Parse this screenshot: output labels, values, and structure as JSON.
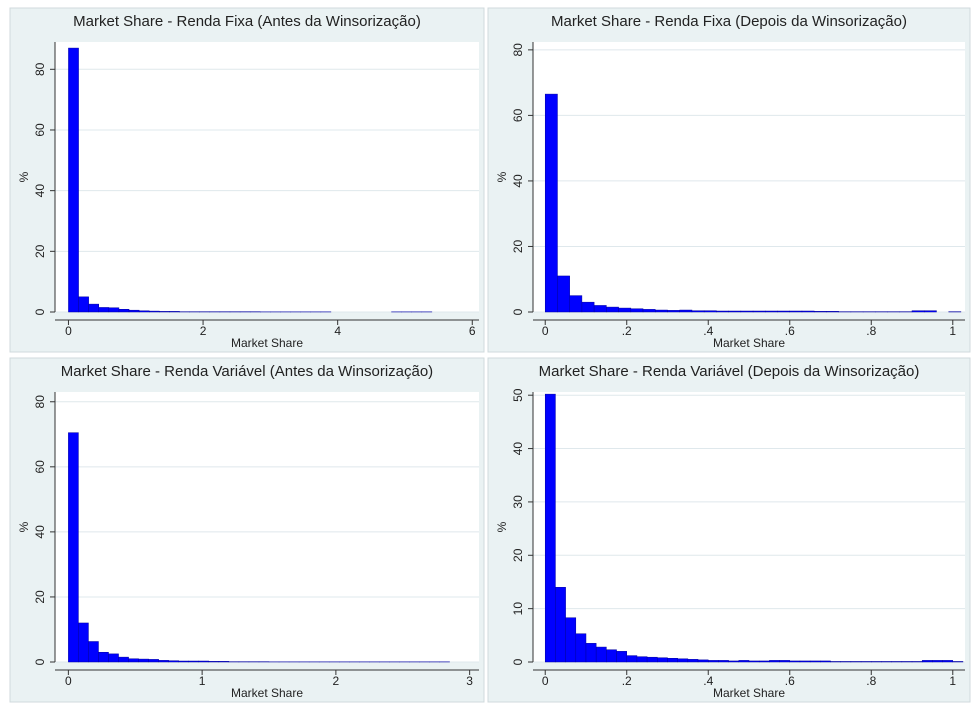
{
  "chart_data": [
    {
      "type": "histogram",
      "title": "Market Share - Renda Fixa (Antes da Winsorização)",
      "x_label": "Market Share",
      "y_label": "%",
      "color": "#0000ff",
      "grid": true,
      "bins": [
        0,
        0.15,
        0.3,
        0.45,
        0.6,
        0.75,
        0.9,
        1.05,
        1.2,
        1.35,
        1.5,
        1.65,
        1.8,
        1.95,
        2.1,
        2.25,
        2.4,
        2.55,
        2.7,
        2.85,
        3,
        3.15,
        3.3,
        3.45,
        3.6,
        3.75,
        3.9,
        4.05,
        4.2,
        4.35,
        4.5,
        4.65,
        4.8,
        4.95,
        5.1,
        5.25,
        5.4,
        5.55
      ],
      "values": [
        87,
        5,
        2.6,
        1.5,
        1.4,
        0.9,
        0.6,
        0.4,
        0.3,
        0.2,
        0.2,
        0.1,
        0.1,
        0.1,
        0.1,
        0.1,
        0.1,
        0.1,
        0.1,
        0.05,
        0.05,
        0.05,
        0.05,
        0.05,
        0.05,
        0.05,
        0,
        0,
        0,
        0,
        0,
        0,
        0.05,
        0.05,
        0.05,
        0.05,
        0
      ],
      "xlim": [
        -0.2,
        6.1
      ],
      "xticks": [
        0,
        2,
        4,
        6
      ],
      "ylim": [
        0,
        89
      ],
      "yticks": [
        0,
        20,
        40,
        60,
        80
      ]
    },
    {
      "type": "histogram",
      "title": "Market Share - Renda Fixa (Depois da Winsorização)",
      "x_label": "Market Share",
      "y_label": "%",
      "color": "#0000ff",
      "grid": true,
      "bins": [
        0,
        0.03,
        0.06,
        0.09,
        0.12,
        0.15,
        0.18,
        0.21,
        0.24,
        0.27,
        0.3,
        0.33,
        0.36,
        0.39,
        0.42,
        0.45,
        0.48,
        0.51,
        0.54,
        0.57,
        0.6,
        0.63,
        0.66,
        0.69,
        0.72,
        0.75,
        0.78,
        0.81,
        0.84,
        0.87,
        0.9,
        0.93,
        0.96,
        0.99,
        1.02
      ],
      "values": [
        66.5,
        11,
        5,
        3,
        2,
        1.5,
        1.2,
        1,
        0.8,
        0.6,
        0.5,
        0.6,
        0.4,
        0.4,
        0.3,
        0.3,
        0.3,
        0.3,
        0.3,
        0.3,
        0.3,
        0.3,
        0.2,
        0.2,
        0.1,
        0.1,
        0.1,
        0.1,
        0.1,
        0.1,
        0.4,
        0.4,
        0,
        0.1
      ],
      "xlim": [
        -0.03,
        1.03
      ],
      "xticks": [
        0,
        {
          "value": 0.2,
          "label": ".2"
        },
        {
          "value": 0.4,
          "label": ".4"
        },
        {
          "value": 0.6,
          "label": ".6"
        },
        {
          "value": 0.8,
          "label": ".8"
        },
        1
      ],
      "ylim": [
        0,
        82.4
      ],
      "yticks": [
        0,
        20,
        40,
        60,
        80
      ]
    },
    {
      "type": "histogram",
      "title": "Market Share - Renda Variável (Antes da Winsorização)",
      "x_label": "Market Share",
      "y_label": "%",
      "color": "#0000ff",
      "grid": true,
      "bins": [
        0,
        0.075,
        0.15,
        0.225,
        0.3,
        0.375,
        0.45,
        0.525,
        0.6,
        0.675,
        0.75,
        0.825,
        0.9,
        0.975,
        1.05,
        1.125,
        1.2,
        1.275,
        1.35,
        1.425,
        1.5,
        1.575,
        1.65,
        1.725,
        1.8,
        1.875,
        1.95,
        2.025,
        2.1,
        2.175,
        2.25,
        2.325,
        2.4,
        2.475,
        2.55,
        2.625,
        2.7,
        2.775,
        2.85
      ],
      "values": [
        70.5,
        12,
        6.3,
        3,
        2.5,
        1.5,
        1,
        0.9,
        0.8,
        0.5,
        0.4,
        0.3,
        0.3,
        0.3,
        0.2,
        0.2,
        0.1,
        0.1,
        0.1,
        0.1,
        0.05,
        0.05,
        0.05,
        0.05,
        0.05,
        0.05,
        0.05,
        0.05,
        0.05,
        0.05,
        0.05,
        0.05,
        0.05,
        0.05,
        0.05,
        0.05,
        0.05,
        0.05
      ],
      "xlim": [
        -0.1,
        3.07
      ],
      "xticks": [
        0,
        1,
        2,
        3
      ],
      "ylim": [
        0,
        83
      ],
      "yticks": [
        0,
        20,
        40,
        60,
        80
      ]
    },
    {
      "type": "histogram",
      "title": "Market Share - Renda Variável (Depois da Winsorização)",
      "x_label": "Market Share",
      "y_label": "%",
      "color": "#0000ff",
      "grid": true,
      "bins": [
        0,
        0.025,
        0.05,
        0.075,
        0.1,
        0.125,
        0.15,
        0.175,
        0.2,
        0.225,
        0.25,
        0.275,
        0.3,
        0.325,
        0.35,
        0.375,
        0.4,
        0.425,
        0.45,
        0.475,
        0.5,
        0.525,
        0.55,
        0.575,
        0.6,
        0.625,
        0.65,
        0.675,
        0.7,
        0.725,
        0.75,
        0.775,
        0.8,
        0.825,
        0.85,
        0.875,
        0.9,
        0.925,
        0.95,
        0.975,
        1,
        1.025
      ],
      "values": [
        50.2,
        14,
        8.3,
        5.3,
        3.5,
        2.8,
        2.3,
        2,
        1.2,
        1,
        0.9,
        0.8,
        0.7,
        0.6,
        0.5,
        0.4,
        0.3,
        0.3,
        0.2,
        0.3,
        0.2,
        0.2,
        0.3,
        0.3,
        0.2,
        0.2,
        0.2,
        0.2,
        0.1,
        0.1,
        0.1,
        0.1,
        0.1,
        0.1,
        0.1,
        0.1,
        0.1,
        0.3,
        0.3,
        0.3,
        0.1
      ],
      "xlim": [
        -0.03,
        1.03
      ],
      "xticks": [
        0,
        {
          "value": 0.2,
          "label": ".2"
        },
        {
          "value": 0.4,
          "label": ".4"
        },
        {
          "value": 0.6,
          "label": ".6"
        },
        {
          "value": 0.8,
          "label": ".8"
        },
        1
      ],
      "ylim": [
        0,
        50.6
      ],
      "yticks": [
        0,
        10,
        20,
        30,
        40,
        50
      ]
    }
  ]
}
